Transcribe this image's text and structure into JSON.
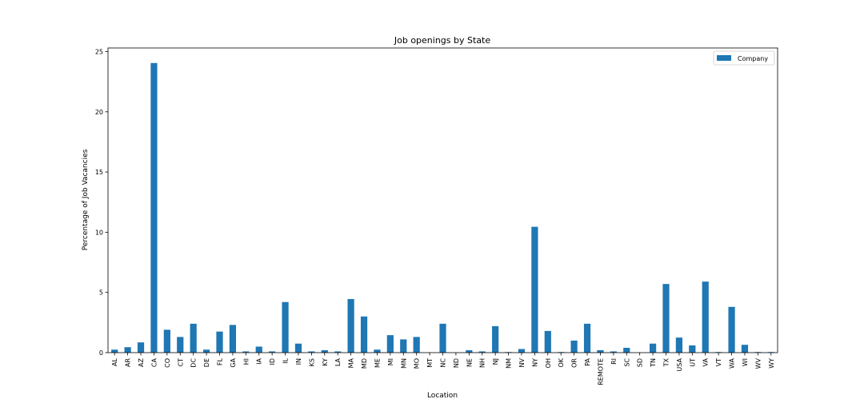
{
  "chart_data": {
    "type": "bar",
    "title": "Job openings by State",
    "xlabel": "Location",
    "ylabel": "Percentage of Job Vacancies",
    "ylim": [
      0,
      25.3
    ],
    "yticks": [
      0,
      5,
      10,
      15,
      20,
      25
    ],
    "grid": false,
    "legend_position": "top-right",
    "categories": [
      "AL",
      "AR",
      "AZ",
      "CA",
      "CO",
      "CT",
      "DC",
      "DE",
      "FL",
      "GA",
      "HI",
      "IA",
      "ID",
      "IL",
      "IN",
      "KS",
      "KY",
      "LA",
      "MA",
      "MD",
      "ME",
      "MI",
      "MN",
      "MO",
      "MT",
      "NC",
      "ND",
      "NE",
      "NH",
      "NJ",
      "NM",
      "NV",
      "NY",
      "OH",
      "OK",
      "OR",
      "PA",
      "REMOTE",
      "RI",
      "SC",
      "SD",
      "TN",
      "TX",
      "USA",
      "UT",
      "VA",
      "VT",
      "WA",
      "WI",
      "WV",
      "WY"
    ],
    "series": [
      {
        "name": "Company",
        "color": "#1f77b4",
        "values": [
          0.25,
          0.45,
          0.85,
          24.05,
          1.9,
          1.3,
          2.4,
          0.25,
          1.75,
          2.3,
          0.1,
          0.5,
          0.1,
          4.2,
          0.75,
          0.1,
          0.2,
          0.1,
          4.45,
          3.0,
          0.25,
          1.45,
          1.1,
          1.3,
          0.0,
          2.4,
          0.0,
          0.2,
          0.1,
          2.2,
          0.05,
          0.3,
          10.45,
          1.8,
          0.05,
          1.0,
          2.4,
          0.2,
          0.1,
          0.4,
          0.0,
          0.75,
          5.7,
          1.25,
          0.6,
          5.9,
          0.05,
          3.8,
          0.65,
          0.05,
          0.05
        ]
      }
    ]
  }
}
